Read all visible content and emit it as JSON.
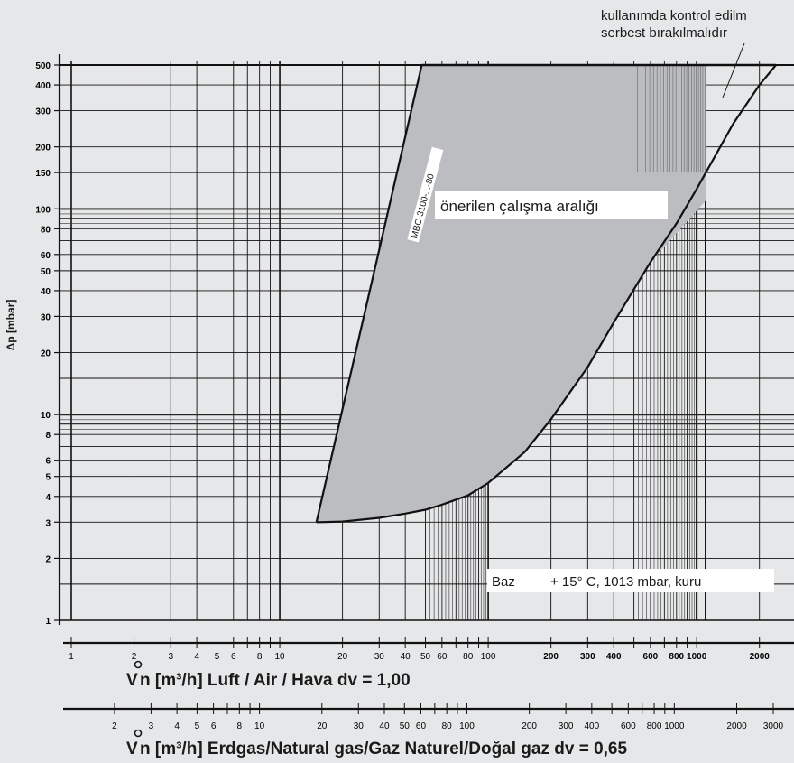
{
  "chart_data": {
    "type": "area",
    "title": "",
    "ylabel": "Δp [mbar]",
    "y_scale": "log",
    "ylim": [
      1,
      500
    ],
    "y_ticks": [
      1,
      2,
      3,
      4,
      5,
      6,
      8,
      10,
      20,
      30,
      40,
      50,
      60,
      80,
      100,
      150,
      200,
      300,
      400,
      500
    ],
    "x_scale": "log",
    "xlim": [
      1,
      3000
    ],
    "x_axes": [
      {
        "name": "air",
        "label": "V̊n [m³/h] Luft / Air / Hava dv = 1,00",
        "label_prefix": "V",
        "label_rest": "n [m³/h] Luft / Air / Hava dv = 1,00",
        "ticks": [
          1,
          2,
          3,
          4,
          5,
          6,
          8,
          10,
          20,
          30,
          40,
          50,
          60,
          80,
          100,
          200,
          300,
          400,
          600,
          800,
          1000,
          2000
        ],
        "tick_labels": [
          "1",
          "2",
          "3",
          "4",
          "5",
          "6",
          "8",
          "10",
          "20",
          "30",
          "40",
          "50",
          "60",
          "80",
          "100",
          "200",
          "300",
          "400",
          "600",
          "800",
          "1000",
          "2000"
        ]
      },
      {
        "name": "natural_gas",
        "label": "V̊n [m³/h] Erdgas/Natural gas/Gaz Naturel/Doğal gaz dv = 0,65",
        "label_prefix": "V",
        "label_rest": "n [m³/h] Erdgas/Natural gas/Gaz Naturel/Doğal gaz dv = 0,65",
        "ticks": [
          2,
          3,
          4,
          5,
          6,
          8,
          10,
          20,
          30,
          40,
          50,
          60,
          80,
          100,
          200,
          300,
          400,
          600,
          800,
          1000,
          2000,
          3000
        ],
        "tick_labels": [
          "2",
          "3",
          "4",
          "5",
          "6",
          "8",
          "10",
          "20",
          "30",
          "40",
          "50",
          "60",
          "80",
          "100",
          "200",
          "300",
          "400",
          "600",
          "800",
          "1000",
          "2000",
          "3000"
        ]
      }
    ],
    "series": [
      {
        "name": "MBC-3100-...-80",
        "x_units": "air",
        "points": [
          [
            15,
            3
          ],
          [
            15.5,
            3
          ],
          [
            20,
            3.02
          ],
          [
            30,
            3.15
          ],
          [
            40,
            3.3
          ],
          [
            50,
            3.45
          ],
          [
            60,
            3.65
          ],
          [
            80,
            4.05
          ],
          [
            100,
            4.65
          ],
          [
            150,
            6.6
          ],
          [
            200,
            9.5
          ],
          [
            300,
            17
          ],
          [
            400,
            28
          ],
          [
            600,
            55
          ],
          [
            800,
            85
          ],
          [
            1000,
            125
          ],
          [
            1500,
            260
          ],
          [
            2000,
            400
          ],
          [
            2400,
            500
          ]
        ]
      }
    ],
    "boundary_left": [
      [
        15,
        3
      ],
      [
        48,
        500
      ]
    ],
    "boundary_top": [
      [
        48,
        500
      ],
      [
        2400,
        500
      ]
    ],
    "shaded_region": {
      "label": "önerilen çalışma aralığı",
      "polygon": [
        [
          15,
          3
        ],
        [
          48,
          500
        ],
        [
          1110,
          500
        ],
        [
          1110,
          110
        ],
        [
          1000,
          98
        ],
        [
          600,
          55
        ],
        [
          400,
          28
        ],
        [
          300,
          17
        ],
        [
          200,
          9.5
        ],
        [
          150,
          6.6
        ],
        [
          100,
          4.65
        ],
        [
          80,
          4.05
        ],
        [
          60,
          3.65
        ],
        [
          50,
          3.45
        ],
        [
          40,
          3.3
        ],
        [
          30,
          3.15
        ],
        [
          20,
          3.02
        ],
        [
          15.5,
          3
        ]
      ]
    },
    "annotations": {
      "recommended_range": "önerilen çalışma aralığı",
      "series_label": "MBC-3100-...-80",
      "top_note_line1": "kullanımda kontrol edilm",
      "top_note_line2": "serbest bırakılmalıdır",
      "basis_label": "Baz",
      "basis_conditions": "+ 15° C, 1013 mbar, kuru"
    },
    "grid": true,
    "legend": "none"
  }
}
